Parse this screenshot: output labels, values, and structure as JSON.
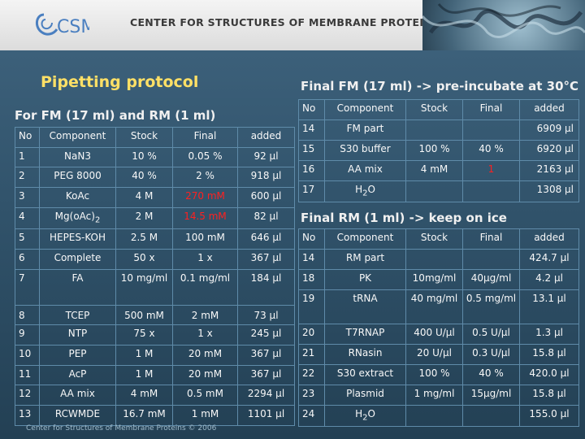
{
  "header": {
    "logo_text": "CSMP",
    "org_title": "CENTER FOR STRUCTURES OF MEMBRANE PROTEINS"
  },
  "title": "Pipetting protocol",
  "left": {
    "subtitle": "For FM (17 ml) and RM (1 ml)",
    "columns": [
      "No",
      "Component",
      "Stock",
      "Final",
      "added"
    ],
    "rows": [
      {
        "no": "1",
        "component": "NaN3",
        "stock": "10 %",
        "final": "0.05 %",
        "added": "92 µl"
      },
      {
        "no": "2",
        "component": "PEG 8000",
        "stock": "40 %",
        "final": "2 %",
        "added": "918 µl"
      },
      {
        "no": "3",
        "component": "KoAc",
        "stock": "4 M",
        "final": "270 mM",
        "added": "600 µl",
        "final_red": true
      },
      {
        "no": "4",
        "component": "Mg(oAc)",
        "component_sub": "2",
        "stock": "2 M",
        "final": "14.5 mM",
        "added": "82 µl",
        "final_red": true
      },
      {
        "no": "5",
        "component": "HEPES-KOH",
        "stock": "2.5 M",
        "final": "100 mM",
        "added": "646 µl"
      },
      {
        "no": "6",
        "component": "Complete",
        "stock": "50 x",
        "final": "1 x",
        "added": "367 µl"
      },
      {
        "no": "7",
        "component": "FA",
        "stock": "10 mg/ml",
        "final": "0.1 mg/ml",
        "added": "184 µl"
      },
      {
        "no": "8",
        "component": "TCEP",
        "stock": "500 mM",
        "final": "2 mM",
        "added": "73 µl"
      },
      {
        "no": "9",
        "component": "NTP",
        "stock": "75 x",
        "final": "1 x",
        "added": "245 µl"
      },
      {
        "no": "10",
        "component": "PEP",
        "stock": "1 M",
        "final": "20 mM",
        "added": "367 µl"
      },
      {
        "no": "11",
        "component": "AcP",
        "stock": "1 M",
        "final": "20 mM",
        "added": "367 µl"
      },
      {
        "no": "12",
        "component": "AA mix",
        "stock": "4 mM",
        "final": "0.5 mM",
        "added": "2294 µl"
      },
      {
        "no": "13",
        "component": "RCWMDE",
        "stock": "16.7 mM",
        "final": "1 mM",
        "added": "1101 µl"
      }
    ]
  },
  "fm": {
    "title": "Final FM (17 ml) -> pre-incubate at 30°C",
    "columns": [
      "No",
      "Component",
      "Stock",
      "Final",
      "added"
    ],
    "rows": [
      {
        "no": "14",
        "component": "FM part",
        "stock": "",
        "final": "",
        "added": "6909 µl"
      },
      {
        "no": "15",
        "component": "S30 buffer",
        "stock": "100 %",
        "final": "40 %",
        "added": "6920 µl"
      },
      {
        "no": "16",
        "component": "AA mix",
        "stock": "4 mM",
        "final": "1",
        "added": "2163 µl",
        "final_red": true
      },
      {
        "no": "17",
        "component": "H",
        "component_sub": "2",
        "component_after": "O",
        "stock": "",
        "final": "",
        "added": "1308 µl"
      }
    ]
  },
  "rm": {
    "title": "Final RM (1 ml) -> keep on ice",
    "columns": [
      "No",
      "Component",
      "Stock",
      "Final",
      "added"
    ],
    "rows": [
      {
        "no": "14",
        "component": "RM part",
        "stock": "",
        "final": "",
        "added": "424.7 µl"
      },
      {
        "no": "18",
        "component": "PK",
        "stock": "10mg/ml",
        "final": "40µg/ml",
        "added": "4.2 µl"
      },
      {
        "no": "19",
        "component": "tRNA",
        "stock": "40 mg/ml",
        "final": "0.5 mg/ml",
        "added": "13.1 µl"
      },
      {
        "no": "20",
        "component": "T7RNAP",
        "stock": "400 U/µl",
        "final": "0.5 U/µl",
        "added": "1.3 µl"
      },
      {
        "no": "21",
        "component": "RNasin",
        "stock": "20 U/µl",
        "final": "0.3 U/µl",
        "added": "15.8 µl"
      },
      {
        "no": "22",
        "component": "S30 extract",
        "stock": "100 %",
        "final": "40 %",
        "added": "420.0 µl"
      },
      {
        "no": "23",
        "component": "Plasmid",
        "stock": "1 mg/ml",
        "final": "15µg/ml",
        "added": "15.8 µl"
      },
      {
        "no": "24",
        "component": "H",
        "component_sub": "2",
        "component_after": "O",
        "stock": "",
        "final": "",
        "added": "155.0 µl"
      }
    ]
  },
  "footer": "Center for Structures of Membrane Proteins © 2006",
  "colors": {
    "title": "#ffe066",
    "highlight": "#ff2020",
    "background": "#31536b"
  }
}
